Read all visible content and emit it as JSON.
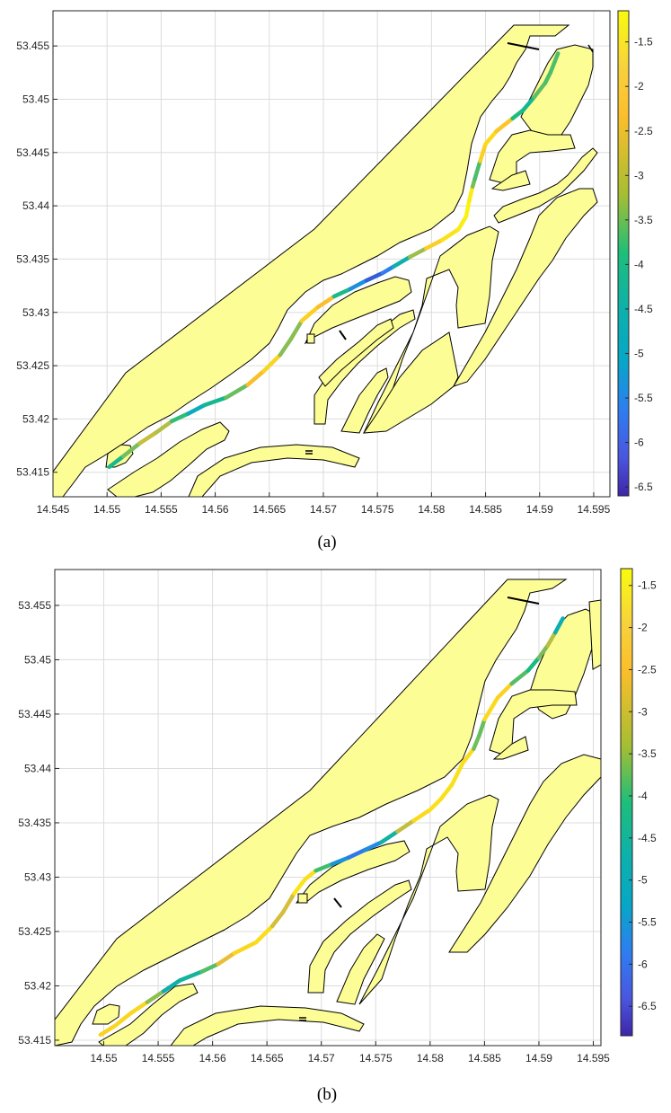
{
  "chart_data": [
    {
      "type": "line",
      "label": "(a)",
      "xlim": [
        14.545,
        14.5965
      ],
      "ylim": [
        53.4127,
        53.4583
      ],
      "x_ticks": [
        14.545,
        14.55,
        14.555,
        14.56,
        14.565,
        14.57,
        14.575,
        14.58,
        14.585,
        14.59,
        14.595
      ],
      "x_tick_labels": [
        "14.545",
        "14.55",
        "14.555",
        "14.56",
        "14.565",
        "14.57",
        "14.575",
        "14.58",
        "14.585",
        "14.59",
        "14.595"
      ],
      "y_ticks": [
        53.415,
        53.42,
        53.425,
        53.43,
        53.435,
        53.44,
        53.445,
        53.45,
        53.455
      ],
      "y_tick_labels": [
        "53.415",
        "53.42",
        "53.425",
        "53.43",
        "53.435",
        "53.44",
        "53.445",
        "53.45",
        "53.455"
      ],
      "grid": true,
      "colorbar": {
        "clim": [
          -6.6,
          -1.15
        ],
        "ticks": [
          -1.5,
          -2,
          -2.5,
          -3,
          -3.5,
          -4,
          -4.5,
          -5,
          -5.5,
          -6,
          -6.5
        ],
        "tick_labels": [
          "-1.5",
          "-2",
          "-2.5",
          "-3",
          "-3.5",
          "-4",
          "-4.5",
          "-5",
          "-5.5",
          "-6",
          "-6.5"
        ],
        "colormap": [
          "#f9fb0e",
          "#fbbe2b",
          "#1dbe7a",
          "#06a7c6",
          "#2d7ef0",
          "#3e26a8"
        ]
      },
      "track": [
        [
          14.5502,
          53.4155,
          -3.2
        ],
        [
          14.5515,
          53.4165,
          -4.0
        ],
        [
          14.553,
          53.4177,
          -1.8
        ],
        [
          14.5545,
          53.4187,
          -3.2
        ],
        [
          14.556,
          53.4198,
          -2.0
        ],
        [
          14.5575,
          53.4205,
          -4.5
        ],
        [
          14.559,
          53.4213,
          -4.0
        ],
        [
          14.561,
          53.422,
          -3.3
        ],
        [
          14.563,
          53.4232,
          -2.6
        ],
        [
          14.5645,
          53.4245,
          -1.9
        ],
        [
          14.566,
          53.426,
          -1.8
        ],
        [
          14.567,
          53.4275,
          -3.8
        ],
        [
          14.568,
          53.4292,
          -1.8
        ],
        [
          14.5695,
          53.4305,
          -2.0
        ],
        [
          14.571,
          53.4315,
          -2.5
        ],
        [
          14.5725,
          53.4322,
          -4.5
        ],
        [
          14.574,
          53.433,
          -5.6
        ],
        [
          14.5755,
          53.4337,
          -6.2
        ],
        [
          14.5765,
          53.4343,
          -4.8
        ],
        [
          14.578,
          53.4352,
          -3.2
        ],
        [
          14.5795,
          53.436,
          -2.2
        ],
        [
          14.581,
          53.4368,
          -1.7
        ],
        [
          14.5825,
          53.4378,
          -1.5
        ],
        [
          14.5832,
          53.439,
          -1.3
        ],
        [
          14.5835,
          53.4405,
          -1.3
        ],
        [
          14.5838,
          53.4418,
          -1.6
        ],
        [
          14.584,
          53.4425,
          -4.2
        ],
        [
          14.5845,
          53.4442,
          -2.0
        ],
        [
          14.585,
          53.4458,
          -1.8
        ],
        [
          14.586,
          53.447,
          -1.7
        ],
        [
          14.5875,
          53.4482,
          -2.5
        ],
        [
          14.5885,
          53.449,
          -4.3
        ],
        [
          14.5895,
          53.4502,
          -3.0
        ],
        [
          14.5905,
          53.4515,
          -3.0
        ],
        [
          14.591,
          53.4525,
          -3.2
        ],
        [
          14.5917,
          53.4543,
          -3.0
        ]
      ]
    },
    {
      "type": "line",
      "label": "(b)",
      "xlim": [
        14.5455,
        14.5957
      ],
      "ylim": [
        53.4145,
        53.4583
      ],
      "x_ticks": [
        14.55,
        14.555,
        14.56,
        14.565,
        14.57,
        14.575,
        14.58,
        14.585,
        14.59,
        14.595
      ],
      "x_tick_labels": [
        "14.55",
        "14.555",
        "14.56",
        "14.565",
        "14.57",
        "14.575",
        "14.58",
        "14.585",
        "14.59",
        "14.595"
      ],
      "y_ticks": [
        53.415,
        53.42,
        53.425,
        53.43,
        53.435,
        53.44,
        53.445,
        53.45,
        53.455
      ],
      "y_tick_labels": [
        "53.415",
        "53.42",
        "53.425",
        "53.43",
        "53.435",
        "53.44",
        "53.445",
        "53.45",
        "53.455"
      ],
      "grid": true,
      "colorbar": {
        "clim": [
          -6.85,
          -1.3
        ],
        "ticks": [
          -1.5,
          -2,
          -2.5,
          -3,
          -3.5,
          -4,
          -4.5,
          -5,
          -5.5,
          -6,
          -6.5
        ],
        "tick_labels": [
          "-1.5",
          "-2",
          "-2.5",
          "-3",
          "-3.5",
          "-4",
          "-4.5",
          "-5",
          "-5.5",
          "-6",
          "-6.5"
        ],
        "colormap": [
          "#f9fb0e",
          "#fbbe2b",
          "#1dbe7a",
          "#06a7c6",
          "#2d7ef0",
          "#3e26a8"
        ]
      },
      "track": [
        [
          14.5497,
          53.4155,
          -2.2
        ],
        [
          14.551,
          53.4163,
          -1.9
        ],
        [
          14.5525,
          53.4175,
          -2.0
        ],
        [
          14.554,
          53.4185,
          -1.9
        ],
        [
          14.5555,
          53.4195,
          -4.0
        ],
        [
          14.557,
          53.4205,
          -4.5
        ],
        [
          14.559,
          53.4213,
          -3.5
        ],
        [
          14.5605,
          53.422,
          -3.0
        ],
        [
          14.562,
          53.423,
          -2.0
        ],
        [
          14.564,
          53.424,
          -1.9
        ],
        [
          14.5655,
          53.4255,
          -1.8
        ],
        [
          14.5665,
          53.4268,
          -3.4
        ],
        [
          14.5675,
          53.4285,
          -1.8
        ],
        [
          14.5685,
          53.4298,
          -1.6
        ],
        [
          14.5695,
          53.4306,
          -2.0
        ],
        [
          14.571,
          53.4312,
          -4.7
        ],
        [
          14.5725,
          53.4318,
          -5.6
        ],
        [
          14.574,
          53.4325,
          -6.0
        ],
        [
          14.5755,
          53.4332,
          -4.8
        ],
        [
          14.577,
          53.4342,
          -3.4
        ],
        [
          14.5785,
          53.4352,
          -2.0
        ],
        [
          14.58,
          53.4362,
          -1.8
        ],
        [
          14.581,
          53.4372,
          -1.8
        ],
        [
          14.582,
          53.4385,
          -1.8
        ],
        [
          14.583,
          53.4405,
          -1.8
        ],
        [
          14.584,
          53.4418,
          -1.9
        ],
        [
          14.5845,
          53.443,
          -4.3
        ],
        [
          14.585,
          53.4445,
          -2.0
        ],
        [
          14.5862,
          53.4465,
          -1.8
        ],
        [
          14.5875,
          53.4478,
          -2.3
        ],
        [
          14.589,
          53.449,
          -4.2
        ],
        [
          14.59,
          53.4502,
          -3.1
        ],
        [
          14.5908,
          53.4513,
          -3.0
        ],
        [
          14.5915,
          53.4525,
          -2.5
        ],
        [
          14.5922,
          53.4538,
          -6.2
        ]
      ]
    }
  ]
}
